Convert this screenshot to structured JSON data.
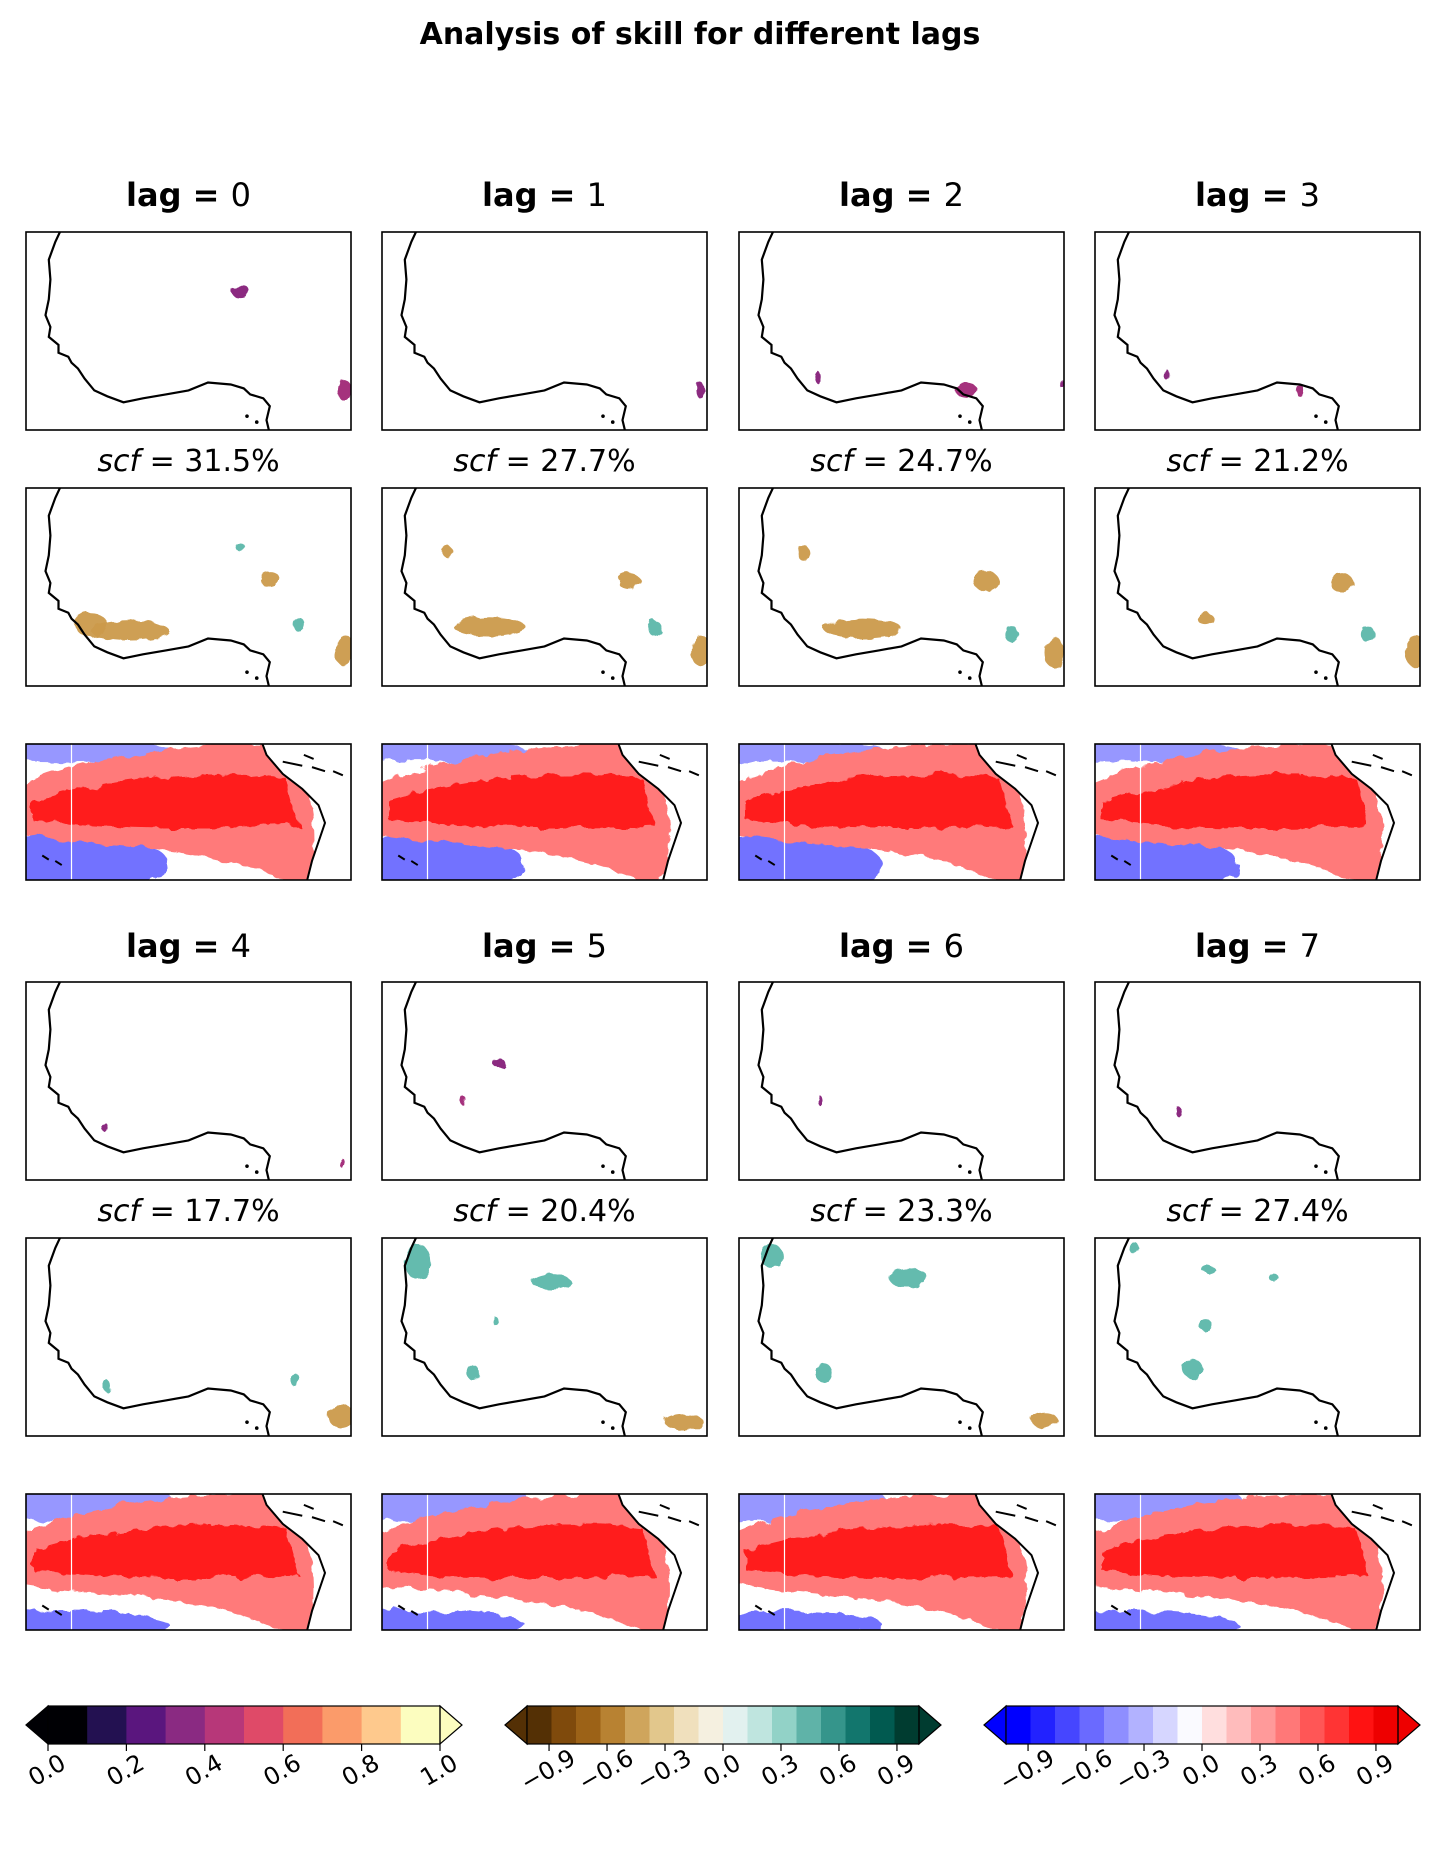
{
  "chart_data": {
    "type": "heatmap",
    "title": "Analysis of skill for different lags",
    "lag_prefix": "lag =",
    "scf_symbol": "scf",
    "scf_equals": "=",
    "lags": [
      {
        "lag": "0",
        "scf": "31.5%",
        "skill_blobs": 2,
        "sst_pattern": "A"
      },
      {
        "lag": "1",
        "scf": "27.7%",
        "skill_blobs": 1,
        "sst_pattern": "A"
      },
      {
        "lag": "2",
        "scf": "24.7%",
        "skill_blobs": 3,
        "sst_pattern": "B"
      },
      {
        "lag": "3",
        "scf": "21.2%",
        "skill_blobs": 2,
        "sst_pattern": "B"
      },
      {
        "lag": "4",
        "scf": "17.7%",
        "skill_blobs": 2,
        "sst_pattern": "C"
      },
      {
        "lag": "5",
        "scf": "20.4%",
        "skill_blobs": 2,
        "sst_pattern": "C"
      },
      {
        "lag": "6",
        "scf": "23.3%",
        "skill_blobs": 1,
        "sst_pattern": "C"
      },
      {
        "lag": "7",
        "scf": "27.4%",
        "skill_blobs": 1,
        "sst_pattern": "C"
      }
    ],
    "colorbars": [
      {
        "name": "skill",
        "ticks": [
          "0.0",
          "0.2",
          "0.4",
          "0.6",
          "0.8",
          "1.0"
        ],
        "colors": [
          "#000004",
          "#231151",
          "#5a167e",
          "#8a2a82",
          "#b73779",
          "#df4a68",
          "#f26e58",
          "#fb9b6a",
          "#fec98d",
          "#fcfdbf"
        ],
        "extend": "both"
      },
      {
        "name": "precip-pattern",
        "ticks": [
          "−0.9",
          "−0.6",
          "−0.3",
          "0.0",
          "0.3",
          "0.6",
          "0.9"
        ],
        "colors": [
          "#543005",
          "#7f4a0c",
          "#9c6217",
          "#b88232",
          "#cfa55c",
          "#e2c78c",
          "#f0e0bd",
          "#f5f0e0",
          "#e2f1ef",
          "#bfe5df",
          "#92d2c7",
          "#5fb3a8",
          "#35958b",
          "#12766d",
          "#015a50",
          "#003c30"
        ],
        "extend": "both"
      },
      {
        "name": "sst-pattern",
        "ticks": [
          "−0.9",
          "−0.6",
          "−0.3",
          "0.0",
          "0.3",
          "0.6",
          "0.9"
        ],
        "colors": [
          "#0000ff",
          "#2222ff",
          "#4646ff",
          "#6a6aff",
          "#8e8eff",
          "#b2b2ff",
          "#d6d6ff",
          "#fafaff",
          "#ffdede",
          "#ffbcbc",
          "#ff9a9a",
          "#ff7878",
          "#ff5656",
          "#ff3434",
          "#ff1212",
          "#ee0000"
        ],
        "extend": "both"
      }
    ]
  }
}
